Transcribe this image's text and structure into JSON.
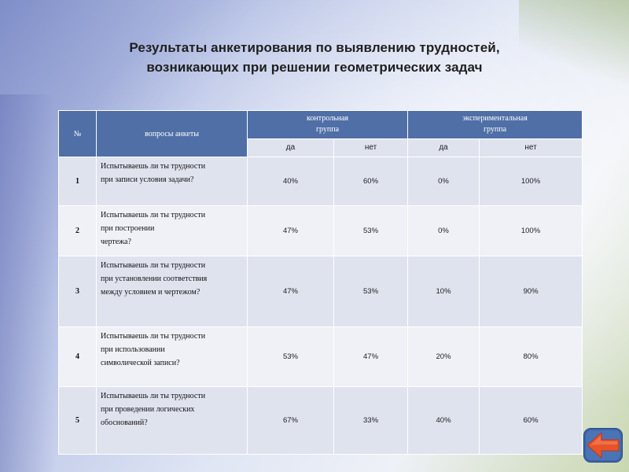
{
  "title": {
    "line1": "Результаты анкетирования по выявлению трудностей,",
    "line2": "возникающих при решении геометрических задач"
  },
  "table": {
    "headers": {
      "num": "№",
      "question": "вопросы анкеты",
      "control": [
        "контрольная",
        "группа"
      ],
      "experimental": [
        "экспериментальная",
        "группа"
      ],
      "yes": "да",
      "no": "нет"
    },
    "rows": [
      {
        "num": "1",
        "question": [
          "Испытываешь ли ты трудности",
          "при записи условия задачи?"
        ],
        "c_yes": "40%",
        "c_no": "60%",
        "e_yes": "0%",
        "e_no": "100%"
      },
      {
        "num": "2",
        "question": [
          "Испытываешь ли ты трудности",
          "при построении",
          "чертежа?"
        ],
        "c_yes": "47%",
        "c_no": "53%",
        "e_yes": "0%",
        "e_no": "100%"
      },
      {
        "num": "3",
        "question": [
          "Испытываешь ли ты трудности",
          "при установлении соответствия",
          "между условием и чертежом?"
        ],
        "c_yes": "47%",
        "c_no": "53%",
        "e_yes": "10%",
        "e_no": "90%"
      },
      {
        "num": "4",
        "question": [
          "Испытываешь ли ты трудности",
          "при использовании",
          "символической записи?"
        ],
        "c_yes": "53%",
        "c_no": "47%",
        "e_yes": "20%",
        "e_no": "80%"
      },
      {
        "num": "5",
        "question": [
          "Испытываешь ли ты трудности",
          "при проведении логических",
          "обоснований?"
        ],
        "c_yes": "67%",
        "c_no": "33%",
        "e_yes": "40%",
        "e_no": "60%"
      }
    ]
  },
  "nav": {
    "back_icon": "arrow-left-icon"
  },
  "colors": {
    "header_bg": "#4f6fa6",
    "row_dark": "#dfe3ee",
    "row_light": "#f0f1f6",
    "arrow": "#e8542a",
    "arrow_ring": "#3b64a8"
  }
}
